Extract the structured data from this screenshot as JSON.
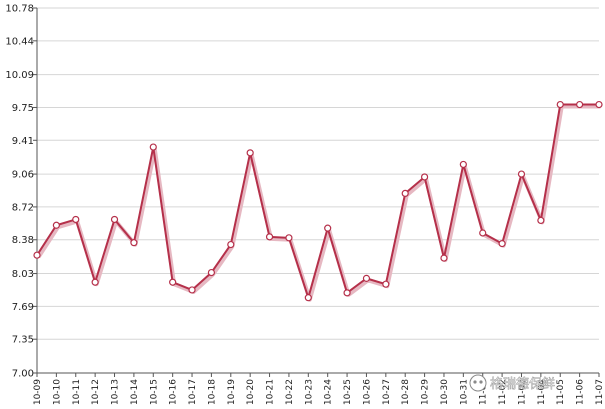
{
  "chart_data": {
    "type": "line",
    "title": "",
    "xlabel": "",
    "ylabel": "",
    "categories": [
      "10-09",
      "10-10",
      "10-11",
      "10-12",
      "10-13",
      "10-14",
      "10-15",
      "10-16",
      "10-17",
      "10-18",
      "10-19",
      "10-20",
      "10-21",
      "10-22",
      "10-23",
      "10-24",
      "10-25",
      "10-26",
      "10-27",
      "10-28",
      "10-29",
      "10-30",
      "10-31",
      "11-01",
      "11-02",
      "11-03",
      "11-04",
      "11-05",
      "11-06",
      "11-07"
    ],
    "series": [
      {
        "values": [
          8.22,
          8.53,
          8.59,
          7.94,
          8.59,
          8.35,
          9.34,
          7.94,
          7.86,
          8.04,
          8.33,
          9.28,
          8.41,
          8.4,
          7.78,
          8.5,
          7.83,
          7.98,
          7.92,
          8.86,
          9.03,
          8.19,
          9.16,
          8.45,
          8.34,
          9.06,
          8.58,
          9.78,
          9.78,
          9.78
        ]
      }
    ],
    "yticks": [
      "7.00",
      "7.35",
      "7.69",
      "8.03",
      "8.38",
      "8.72",
      "9.06",
      "9.41",
      "9.75",
      "10.09",
      "10.44",
      "10.78"
    ],
    "ylim": [
      7.0,
      10.78
    ],
    "grid": true,
    "line_color": "#b5304a",
    "marker_fill": "#ffffff"
  },
  "watermark": {
    "text": "格瑞德保鲜"
  }
}
